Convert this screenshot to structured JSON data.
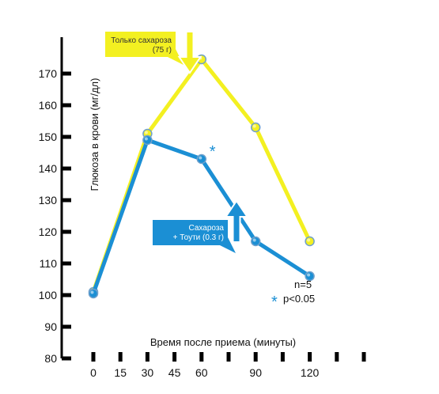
{
  "chart_data": {
    "type": "line",
    "xlabel": "Время после приема (минуты)",
    "ylabel": "Глюкоза в крови (мг/дл)",
    "xlim": [
      0,
      150
    ],
    "ylim": [
      80,
      180
    ],
    "x_ticks": [
      0,
      15,
      30,
      45,
      60,
      90,
      120
    ],
    "x_tick_marks": [
      0,
      15,
      30,
      45,
      60,
      75,
      90,
      105,
      120,
      135,
      150
    ],
    "y_ticks": [
      80,
      90,
      100,
      110,
      120,
      130,
      140,
      150,
      160,
      170
    ],
    "grid": false,
    "series": [
      {
        "name": "Только сахароза (75 г)",
        "color": "#f3f021",
        "x": [
          0,
          30,
          60,
          90,
          120
        ],
        "values": [
          101,
          151,
          174.5,
          153,
          117
        ]
      },
      {
        "name": "Сахароза + Тоути (0.3 г)",
        "color": "#1b8fd4",
        "x": [
          0,
          30,
          60,
          90,
          120
        ],
        "values": [
          100.5,
          149,
          143,
          117,
          106
        ]
      }
    ],
    "legend": [
      {
        "line1": "Только сахароза",
        "line2": "(75 г)",
        "color": "#f3f021",
        "text_color": "#333333",
        "arrow": "down",
        "placement": "top-left"
      },
      {
        "line1": "Сахароза",
        "line2": "+ Тоути (0.3 г)",
        "color": "#1b8fd4",
        "text_color": "#ffffff",
        "arrow": "up",
        "placement": "center"
      }
    ],
    "annotations": {
      "significance_x": 60,
      "significance_symbol": "*",
      "n_label": "n=5",
      "p_symbol": "*",
      "p_label": "p<0.05",
      "asterisk_color": "#1b8fd4"
    }
  }
}
